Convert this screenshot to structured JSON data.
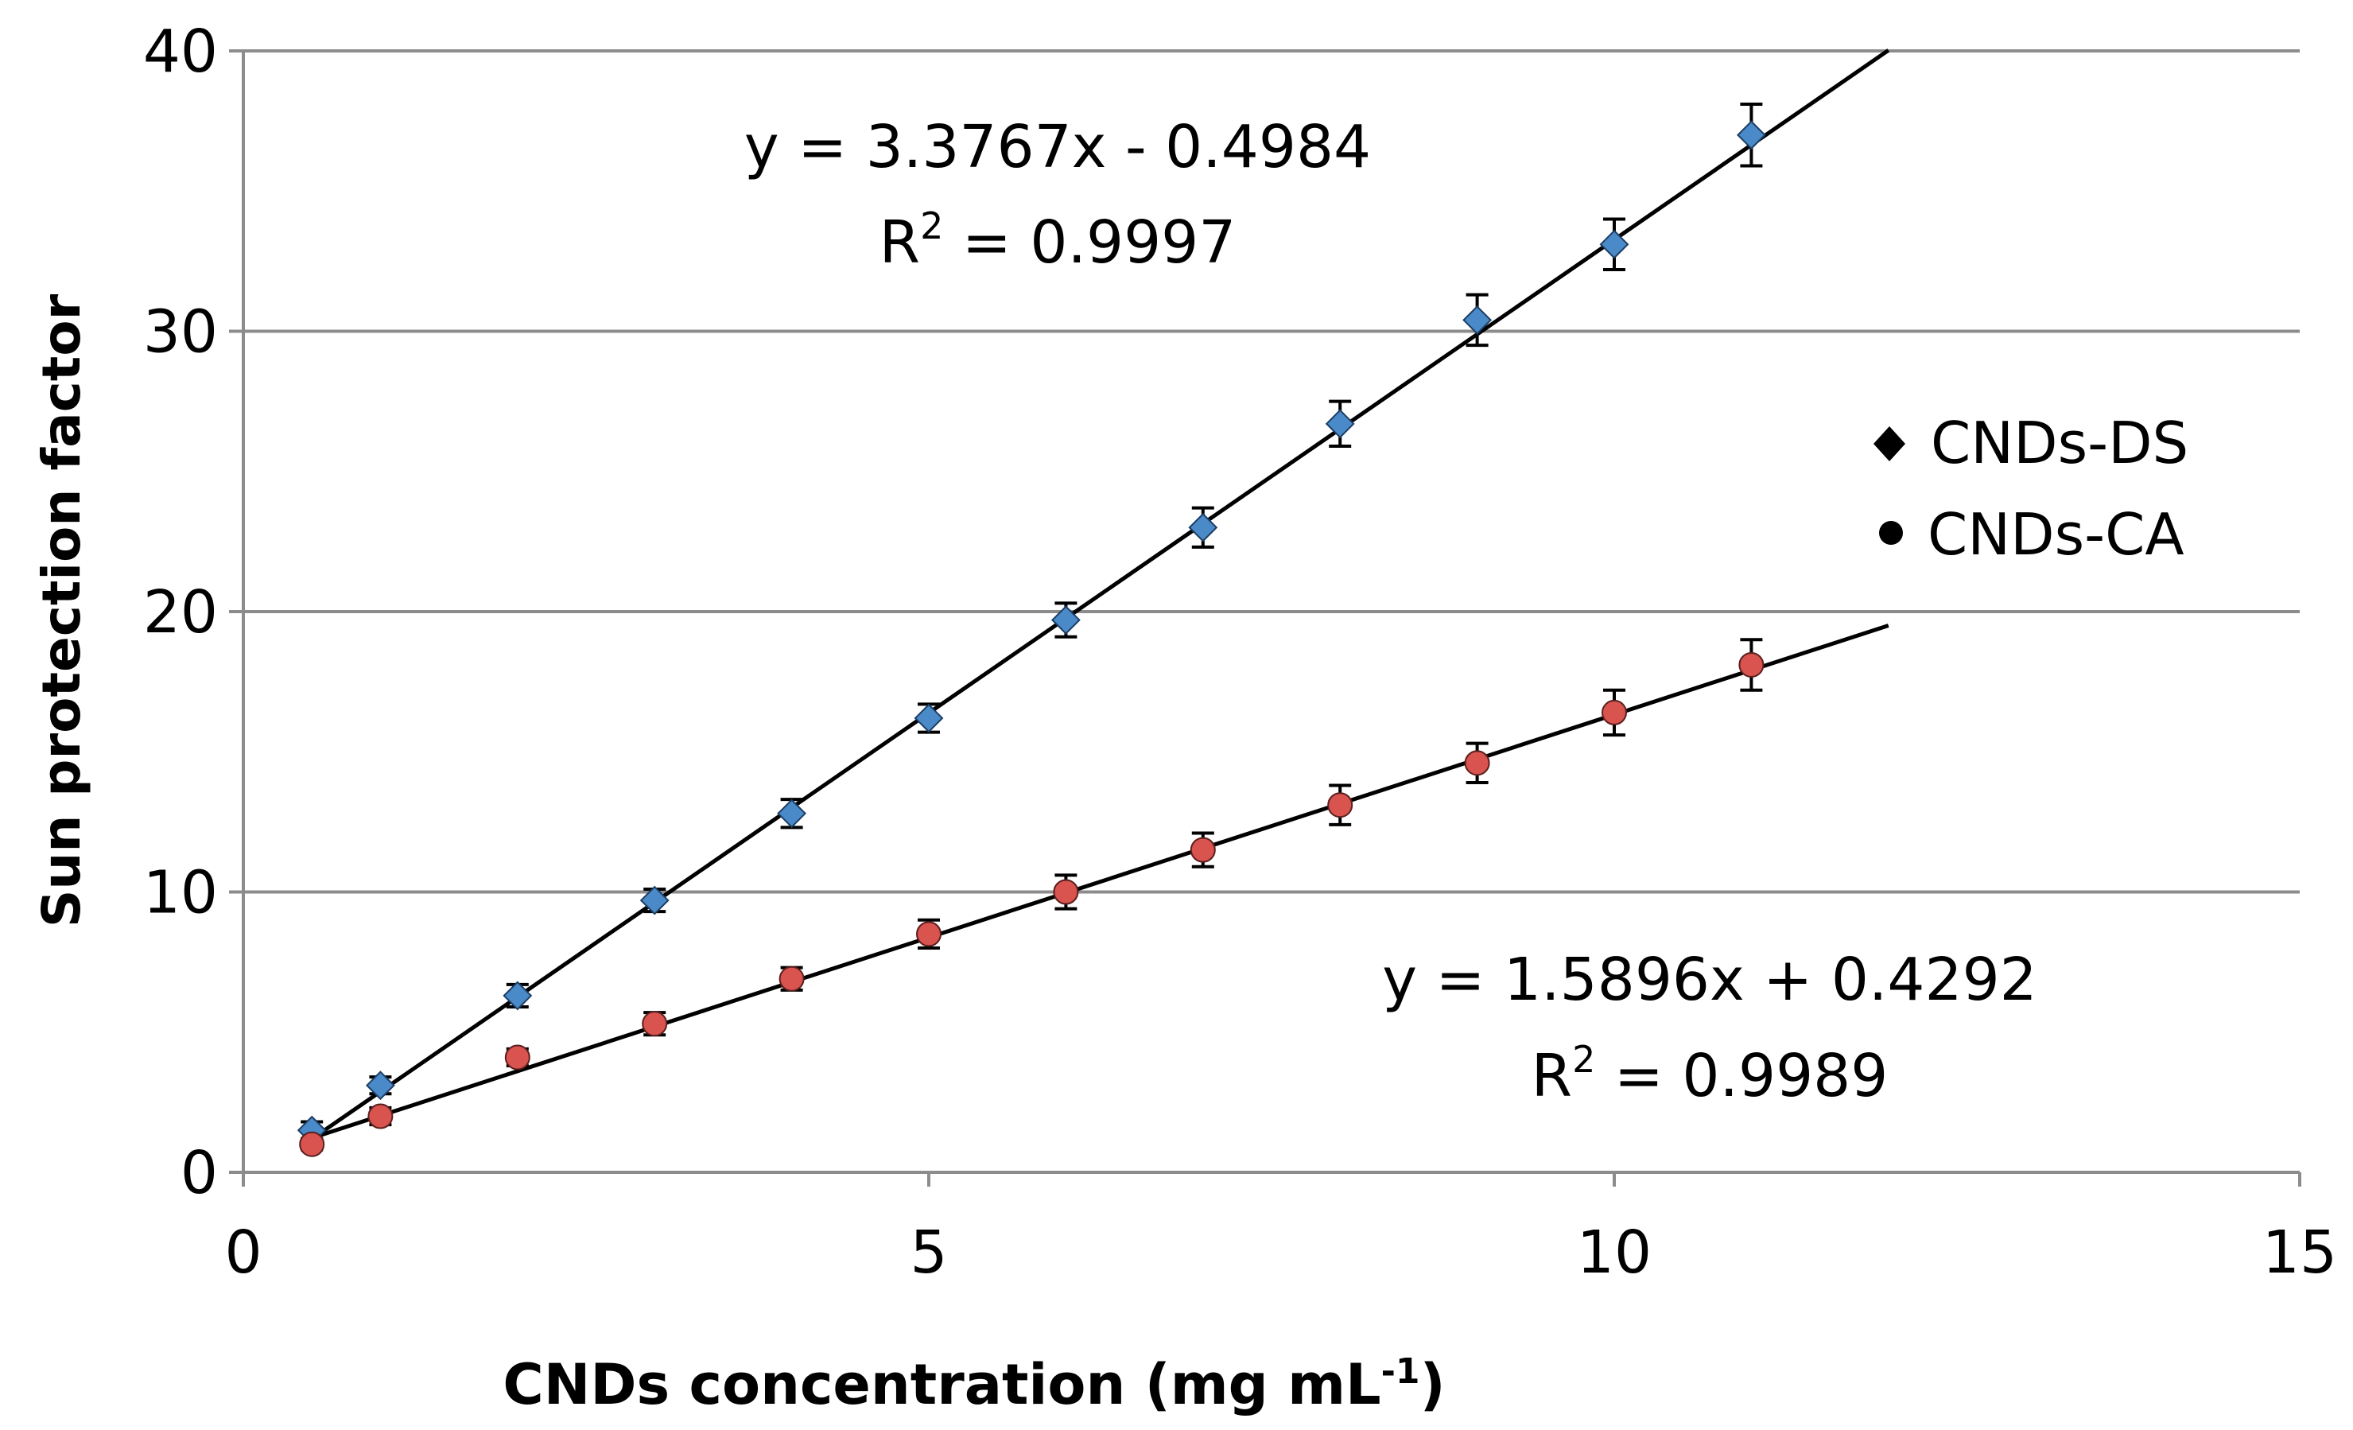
{
  "chart_data": {
    "type": "scatter",
    "title": "",
    "xlabel": "CNDs concentration (mg mL",
    "xlabel_sup": "-1",
    "xlabel_close": ")",
    "ylabel": "Sun protection factor",
    "xlim": [
      0,
      15
    ],
    "ylim": [
      0,
      40
    ],
    "xticks": [
      0,
      5,
      10,
      15
    ],
    "yticks": [
      0,
      10,
      20,
      30,
      40
    ],
    "grid": "horizontal",
    "legend_position": "right",
    "series": [
      {
        "name": "CNDs-DS",
        "marker": "diamond",
        "color": "#4a8ac8",
        "x": [
          0.5,
          1,
          2,
          3,
          4,
          5,
          6,
          7,
          8,
          9,
          10,
          11
        ],
        "y": [
          1.5,
          3.1,
          6.3,
          9.7,
          12.8,
          16.2,
          19.7,
          23.0,
          26.7,
          30.4,
          33.1,
          37.0
        ],
        "error": [
          0.3,
          0.3,
          0.4,
          0.4,
          0.5,
          0.5,
          0.6,
          0.7,
          0.8,
          0.9,
          0.9,
          1.1
        ],
        "trendline": {
          "slope": 3.3767,
          "intercept": -0.4984,
          "x_range": [
            0.5,
            12
          ],
          "equation": "y = 3.3767x - 0.4984",
          "r2_prefix": "R",
          "r2_sup": "2",
          "r2_value": " = 0.9997"
        }
      },
      {
        "name": "CNDs-CA",
        "marker": "circle",
        "color": "#d9534f",
        "x": [
          0.5,
          1,
          2,
          3,
          4,
          5,
          6,
          7,
          8,
          9,
          10,
          11
        ],
        "y": [
          1.0,
          2.0,
          4.1,
          5.3,
          6.9,
          8.5,
          10.0,
          11.5,
          13.1,
          14.6,
          16.4,
          18.1
        ],
        "error": [
          0.2,
          0.3,
          0.3,
          0.4,
          0.4,
          0.5,
          0.6,
          0.6,
          0.7,
          0.7,
          0.8,
          0.9
        ],
        "trendline": {
          "slope": 1.5896,
          "intercept": 0.4292,
          "x_range": [
            0.5,
            12
          ],
          "equation": "y = 1.5896x + 0.4292",
          "r2_prefix": "R",
          "r2_sup": "2",
          "r2_value": " = 0.9989"
        }
      }
    ]
  }
}
